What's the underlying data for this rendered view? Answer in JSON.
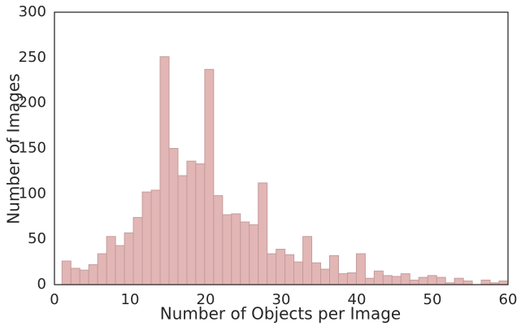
{
  "chart_data": {
    "type": "histogram",
    "xlabel": "Number of Objects per Image",
    "ylabel": "Number of Images",
    "bins": [
      1,
      2.18,
      3.36,
      4.54,
      5.72,
      6.9,
      8.08,
      9.26,
      10.44,
      11.62,
      12.8,
      13.98,
      15.16,
      16.34,
      17.52,
      18.7,
      19.88,
      21.06,
      22.24,
      23.42,
      24.6,
      25.78,
      26.96,
      28.14,
      29.32,
      30.5,
      31.68,
      32.86,
      34.04,
      35.22,
      36.4,
      37.58,
      38.76,
      39.94,
      41.12,
      42.3,
      43.48,
      44.66,
      45.84,
      47.02,
      48.2,
      49.38,
      50.56,
      51.74,
      52.92,
      54.1,
      55.28,
      56.46,
      57.64,
      58.82,
      60
    ],
    "counts": [
      26,
      18,
      16,
      22,
      34,
      53,
      43,
      57,
      74,
      102,
      104,
      251,
      150,
      120,
      136,
      133,
      237,
      98,
      77,
      78,
      69,
      66,
      112,
      34,
      39,
      33,
      25,
      53,
      24,
      17,
      32,
      12,
      13,
      34,
      7,
      15,
      10,
      9,
      12,
      5,
      8,
      10,
      8,
      2,
      7,
      4,
      0,
      5,
      2,
      4
    ],
    "color": "#e3b6b6",
    "edgecolor": "#c49c9c",
    "xlim": [
      0,
      60
    ],
    "xticks": [
      0,
      10,
      20,
      30,
      40,
      50,
      60
    ],
    "ylim": [
      0,
      300
    ],
    "yticks": [
      0,
      50,
      100,
      150,
      200,
      250,
      300
    ],
    "grid": false
  }
}
